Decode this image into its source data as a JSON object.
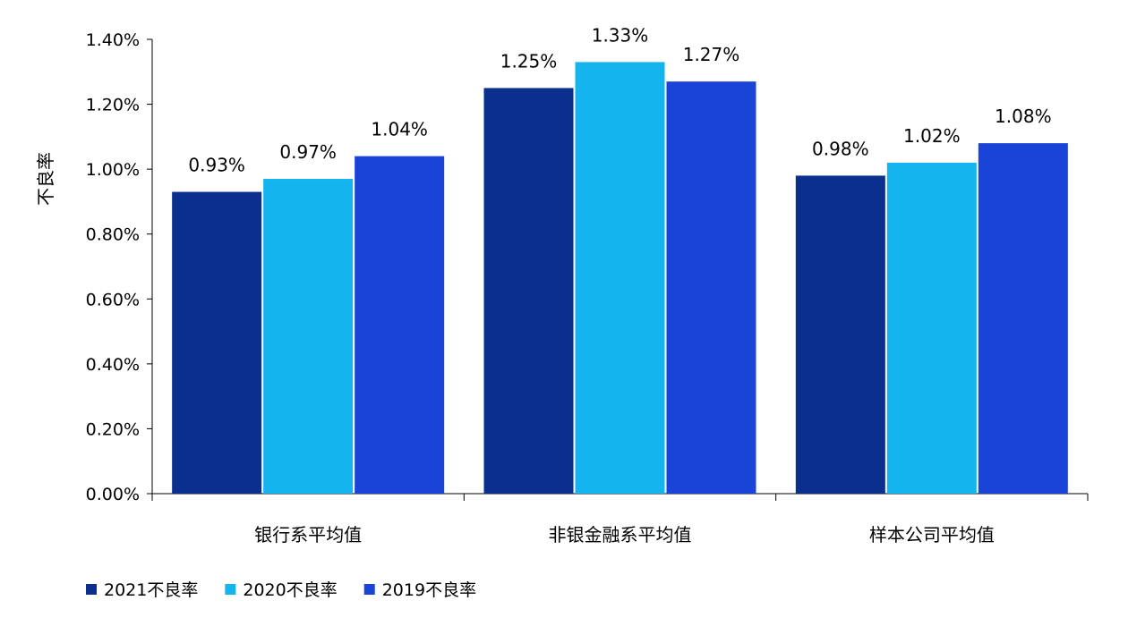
{
  "chart_data": {
    "type": "bar",
    "title": "",
    "xlabel": "",
    "ylabel": "不良率",
    "ylim": [
      0,
      1.4
    ],
    "y_ticks": [
      "0.00%",
      "0.20%",
      "0.40%",
      "0.60%",
      "0.80%",
      "1.00%",
      "1.20%",
      "1.40%"
    ],
    "categories": [
      "银行系平均值",
      "非银金融系平均值",
      "样本公司平均值"
    ],
    "series": [
      {
        "name": "2021不良率",
        "color": "#0a2f8c",
        "values": [
          0.93,
          1.25,
          0.98
        ],
        "labels": [
          "0.93%",
          "1.25%",
          "0.98%"
        ]
      },
      {
        "name": "2020不良率",
        "color": "#14b4ef",
        "values": [
          0.97,
          1.33,
          1.02
        ],
        "labels": [
          "0.97%",
          "1.33%",
          "1.02%"
        ]
      },
      {
        "name": "2019不良率",
        "color": "#1a44d8",
        "values": [
          1.04,
          1.27,
          1.08
        ],
        "labels": [
          "1.04%",
          "1.27%",
          "1.08%"
        ]
      }
    ],
    "grid": false,
    "legend": "bottom-left"
  }
}
